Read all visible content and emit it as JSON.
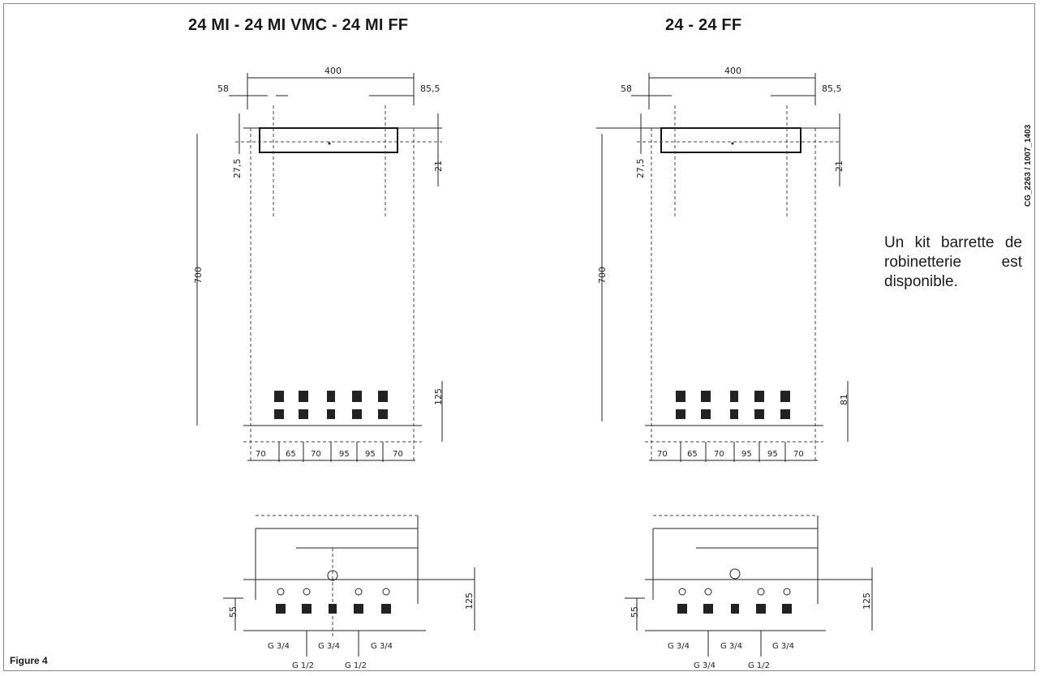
{
  "titles": {
    "left": "24 MI - 24 MI VMC - 24 MI FF",
    "right": "24 - 24 FF"
  },
  "note": "Un kit barrette de robinetterie est disponible.",
  "figure_label": "Figure 4",
  "ref_code": "CG_2263 / 1007_1403",
  "left_drawing": {
    "top_dims": [
      "400",
      "58",
      "85,5"
    ],
    "side_dims": [
      "27,5",
      "21",
      "700",
      "125"
    ],
    "bottom_dims": [
      "70",
      "65",
      "70",
      "95",
      "95",
      "70"
    ],
    "lower_side_dims": [
      "55",
      "125"
    ],
    "fittings": [
      "G 3/4",
      "G 3/4",
      "G 3/4",
      "G 1/2",
      "G 1/2"
    ]
  },
  "right_drawing": {
    "top_dims": [
      "400",
      "58",
      "85,5"
    ],
    "side_dims": [
      "27,5",
      "21",
      "700",
      "81"
    ],
    "bottom_dims": [
      "70",
      "65",
      "70",
      "95",
      "95",
      "70"
    ],
    "lower_side_dims": [
      "55",
      "125"
    ],
    "fittings": [
      "G 3/4",
      "G 3/4",
      "G 3/4",
      "G 3/4",
      "G 1/2"
    ]
  }
}
